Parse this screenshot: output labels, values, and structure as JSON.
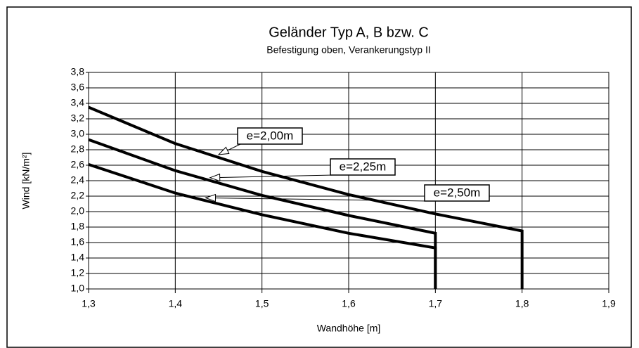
{
  "chart_data": {
    "type": "line",
    "title": "Geländer Typ A, B bzw. C",
    "subtitle": "Befestigung oben, Verankerungstyp II",
    "x_label": "Wandhöhe [m]",
    "y_label": "Wind [kN/m²]",
    "grid": true,
    "xlim": [
      1.3,
      1.9
    ],
    "ylim": [
      1.0,
      3.8
    ],
    "xticks": [
      {
        "value": 1.3,
        "label": "1,3"
      },
      {
        "value": 1.4,
        "label": "1,4"
      },
      {
        "value": 1.5,
        "label": "1,5"
      },
      {
        "value": 1.6,
        "label": "1,6"
      },
      {
        "value": 1.7,
        "label": "1,7"
      },
      {
        "value": 1.8,
        "label": "1,8"
      },
      {
        "value": 1.9,
        "label": "1,9"
      }
    ],
    "yticks": [
      {
        "value": 1.0,
        "label": "1,0"
      },
      {
        "value": 1.2,
        "label": "1,2"
      },
      {
        "value": 1.4,
        "label": "1,4"
      },
      {
        "value": 1.6,
        "label": "1,6"
      },
      {
        "value": 1.8,
        "label": "1,8"
      },
      {
        "value": 2.0,
        "label": "2,0"
      },
      {
        "value": 2.2,
        "label": "2,2"
      },
      {
        "value": 2.4,
        "label": "2,4"
      },
      {
        "value": 2.6,
        "label": "2,6"
      },
      {
        "value": 2.8,
        "label": "2,8"
      },
      {
        "value": 3.0,
        "label": "3,0"
      },
      {
        "value": 3.2,
        "label": "3,2"
      },
      {
        "value": 3.4,
        "label": "3,4"
      },
      {
        "value": 3.6,
        "label": "3,6"
      },
      {
        "value": 3.8,
        "label": "3,8"
      }
    ],
    "series": [
      {
        "name": "e=2,00m",
        "color": "#000000",
        "x": [
          1.3,
          1.4,
          1.5,
          1.6,
          1.7,
          1.8,
          1.8
        ],
        "values": [
          3.35,
          2.88,
          2.52,
          2.22,
          1.97,
          1.75,
          1.0
        ]
      },
      {
        "name": "e=2,25m",
        "color": "#000000",
        "x": [
          1.3,
          1.4,
          1.5,
          1.6,
          1.7,
          1.7
        ],
        "values": [
          2.93,
          2.53,
          2.21,
          1.95,
          1.72,
          1.0
        ]
      },
      {
        "name": "e=2,50m",
        "color": "#000000",
        "x": [
          1.3,
          1.4,
          1.5,
          1.6,
          1.7,
          1.7
        ],
        "values": [
          2.61,
          2.24,
          1.96,
          1.72,
          1.53,
          1.0
        ]
      }
    ]
  }
}
